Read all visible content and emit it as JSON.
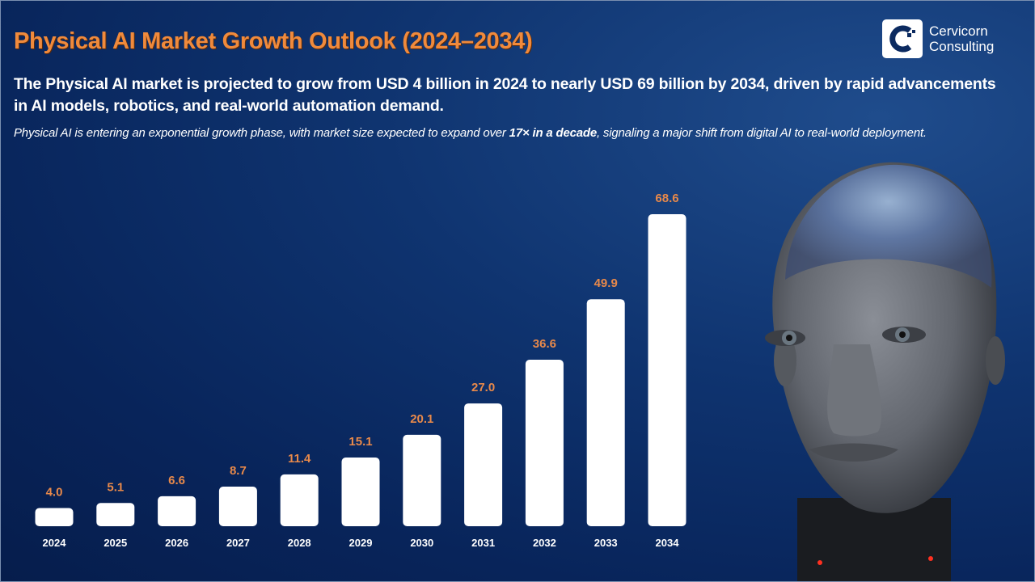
{
  "header": {
    "title": "Physical AI Market Growth Outlook (2024–2034)",
    "subtitle": "The Physical AI market is projected to grow from USD 4 billion in 2024 to nearly USD 69 billion by 2034, driven by rapid advancements in AI models, robotics, and real-world automation demand.",
    "note_before": "Physical AI is entering an exponential growth phase, with market size expected to expand over ",
    "note_bold": "17× in a decade",
    "note_after": ", signaling a major shift from digital AI to real-world deployment."
  },
  "logo": {
    "line1": "Cervicorn",
    "line2": "Consulting"
  },
  "colors": {
    "background": "#08245a",
    "title": "#f08a3c",
    "value_label": "#e8894a",
    "bar": "#ffffff"
  },
  "chart_data": {
    "type": "bar",
    "categories": [
      "2024",
      "2025",
      "2026",
      "2027",
      "2028",
      "2029",
      "2030",
      "2031",
      "2032",
      "2033",
      "2034"
    ],
    "values": [
      4.0,
      5.1,
      6.6,
      8.7,
      11.4,
      15.1,
      20.1,
      27.0,
      36.6,
      49.9,
      68.6
    ],
    "labels": [
      "4.0",
      "5.1",
      "6.6",
      "8.7",
      "11.4",
      "15.1",
      "20.1",
      "27.0",
      "36.6",
      "49.9",
      "68.6"
    ],
    "title": "",
    "xlabel": "",
    "ylabel": "",
    "ylim": [
      0,
      68.6
    ],
    "grid": false,
    "legend": "none"
  }
}
